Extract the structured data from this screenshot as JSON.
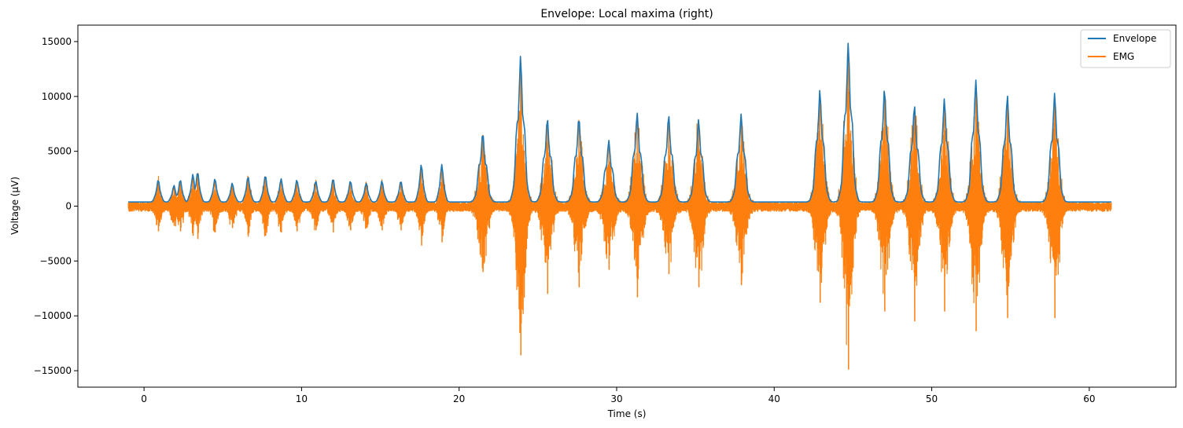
{
  "chart_data": {
    "type": "line",
    "title": "Envelope: Local maxima (right)",
    "xlabel": "Time (s)",
    "ylabel": "Voltage (μV)",
    "xlim": [
      -4.2,
      65.5
    ],
    "ylim": [
      -16500,
      16500
    ],
    "xticks": [
      0,
      10,
      20,
      30,
      40,
      50,
      60
    ],
    "yticks": [
      -15000,
      -10000,
      -5000,
      0,
      5000,
      10000,
      15000
    ],
    "xtick_labels": [
      "0",
      "10",
      "20",
      "30",
      "40",
      "50",
      "60"
    ],
    "ytick_labels": [
      "−15000",
      "−10000",
      "−5000",
      "0",
      "5000",
      "10000",
      "15000"
    ],
    "grid": false,
    "legend_position": "top-right",
    "colors": {
      "Envelope": "#1f77b4",
      "EMG": "#ff7f0e"
    },
    "time_range": [
      -1.0,
      61.4
    ],
    "bursts": [
      {
        "t": 0.9,
        "peak": 2400,
        "neg": 2300
      },
      {
        "t": 1.9,
        "peak": 1900,
        "neg": 1800
      },
      {
        "t": 2.3,
        "peak": 2400,
        "neg": 2300
      },
      {
        "t": 3.1,
        "peak": 2900,
        "neg": 2700
      },
      {
        "t": 3.4,
        "peak": 3100,
        "neg": 3000
      },
      {
        "t": 4.5,
        "peak": 2500,
        "neg": 2400
      },
      {
        "t": 5.6,
        "peak": 2100,
        "neg": 2000
      },
      {
        "t": 6.6,
        "peak": 2700,
        "neg": 2600
      },
      {
        "t": 7.7,
        "peak": 2800,
        "neg": 2700
      },
      {
        "t": 8.7,
        "peak": 2500,
        "neg": 2400
      },
      {
        "t": 9.7,
        "peak": 2400,
        "neg": 2300
      },
      {
        "t": 10.9,
        "peak": 2300,
        "neg": 2200
      },
      {
        "t": 12.0,
        "peak": 2500,
        "neg": 2400
      },
      {
        "t": 13.1,
        "peak": 2300,
        "neg": 2200
      },
      {
        "t": 14.1,
        "peak": 2100,
        "neg": 2000
      },
      {
        "t": 15.1,
        "peak": 2300,
        "neg": 2200
      },
      {
        "t": 16.3,
        "peak": 2300,
        "neg": 2200
      },
      {
        "t": 17.6,
        "peak": 3800,
        "neg": 3600
      },
      {
        "t": 18.9,
        "peak": 3800,
        "neg": 3300
      },
      {
        "t": 21.5,
        "peak": 6700,
        "neg": 6000
      },
      {
        "t": 23.9,
        "peak": 13700,
        "neg": 13600
      },
      {
        "t": 25.6,
        "peak": 8000,
        "neg": 8000
      },
      {
        "t": 27.6,
        "peak": 8100,
        "neg": 7400
      },
      {
        "t": 29.5,
        "peak": 6000,
        "neg": 5800
      },
      {
        "t": 31.3,
        "peak": 8500,
        "neg": 8300
      },
      {
        "t": 33.3,
        "peak": 8300,
        "neg": 6200
      },
      {
        "t": 35.2,
        "peak": 7900,
        "neg": 7400
      },
      {
        "t": 37.9,
        "peak": 8400,
        "neg": 7200
      },
      {
        "t": 42.9,
        "peak": 10600,
        "neg": 8800
      },
      {
        "t": 44.7,
        "peak": 14900,
        "neg": 14900
      },
      {
        "t": 47.0,
        "peak": 10700,
        "neg": 9600
      },
      {
        "t": 48.9,
        "peak": 9200,
        "neg": 10500
      },
      {
        "t": 50.8,
        "peak": 9800,
        "neg": 9600
      },
      {
        "t": 52.8,
        "peak": 11500,
        "neg": 11400
      },
      {
        "t": 54.8,
        "peak": 10100,
        "neg": 10200
      },
      {
        "t": 57.8,
        "peak": 10300,
        "neg": 10200
      }
    ],
    "series": [
      {
        "name": "Envelope",
        "type": "line"
      },
      {
        "name": "EMG",
        "type": "line"
      }
    ]
  }
}
